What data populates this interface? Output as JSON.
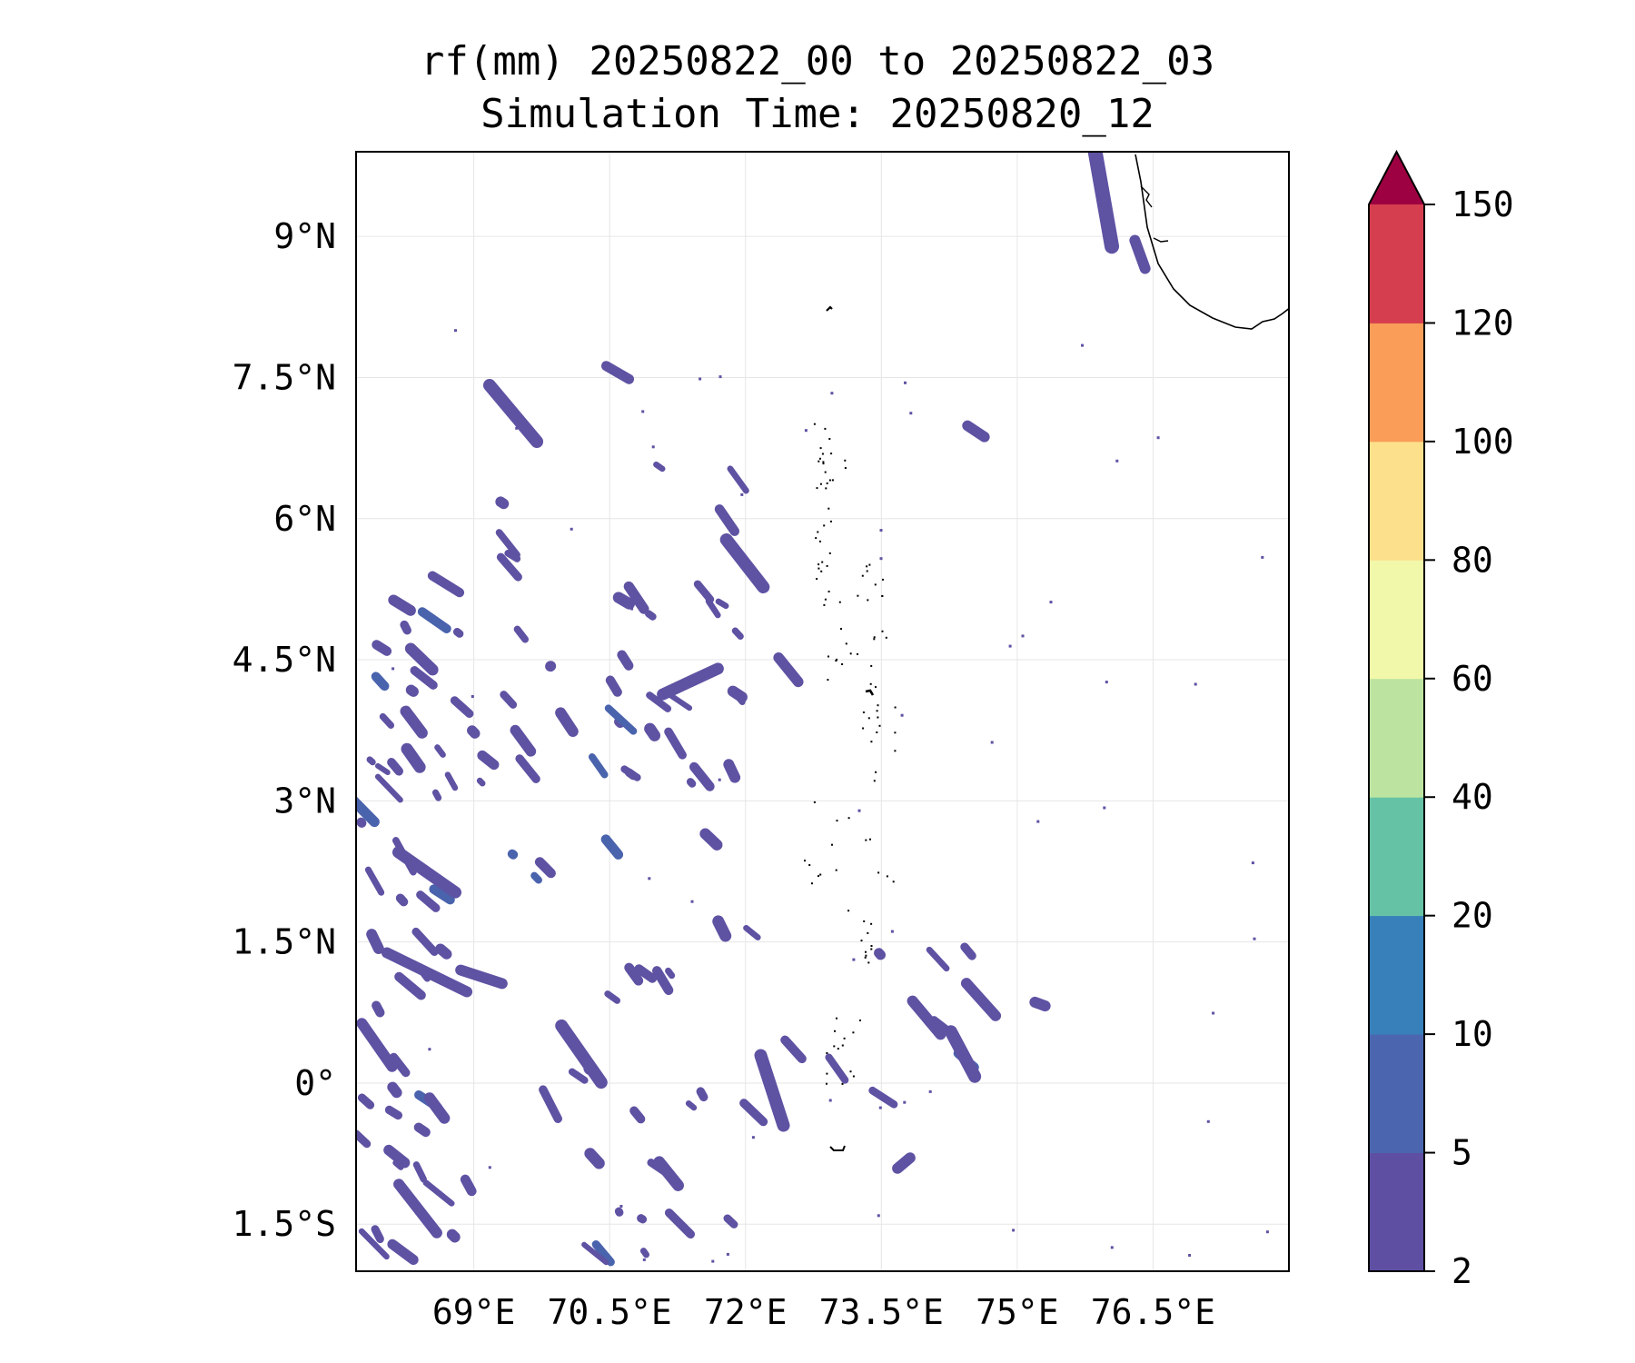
{
  "title": {
    "line1": "rf(mm) 20250822_00 to 20250822_03",
    "line2": "Simulation Time: 20250820_12"
  },
  "map": {
    "lon_range": [
      67.7,
      78.0
    ],
    "lat_range": [
      -2.0,
      9.9
    ],
    "lon_ticks": [
      69,
      70.5,
      72,
      73.5,
      75,
      76.5
    ],
    "lat_ticks": [
      9,
      7.5,
      6,
      4.5,
      3,
      1.5,
      0,
      -1.5
    ],
    "lon_tick_labels": [
      "69°E",
      "70.5°E",
      "72°E",
      "73.5°E",
      "75°E",
      "76.5°E"
    ],
    "lat_tick_labels": [
      "9°N",
      "7.5°N",
      "6°N",
      "4.5°N",
      "3°N",
      "1.5°N",
      "0°",
      "1.5°S"
    ],
    "grid": true,
    "rain_color": "#5e52a3",
    "rain_color_alt": "#4a63ad",
    "coast_color": "#000000"
  },
  "colorbar": {
    "levels": [
      "2",
      "5",
      "10",
      "20",
      "40",
      "60",
      "80",
      "100",
      "120",
      "150"
    ],
    "colors": [
      "#5e4fa2",
      "#4b66ae",
      "#3880ba",
      "#66c2a5",
      "#bce4a0",
      "#f2f8aa",
      "#fde08b",
      "#f99d59",
      "#d53e4f"
    ],
    "extend_color": "#9e0142"
  }
}
